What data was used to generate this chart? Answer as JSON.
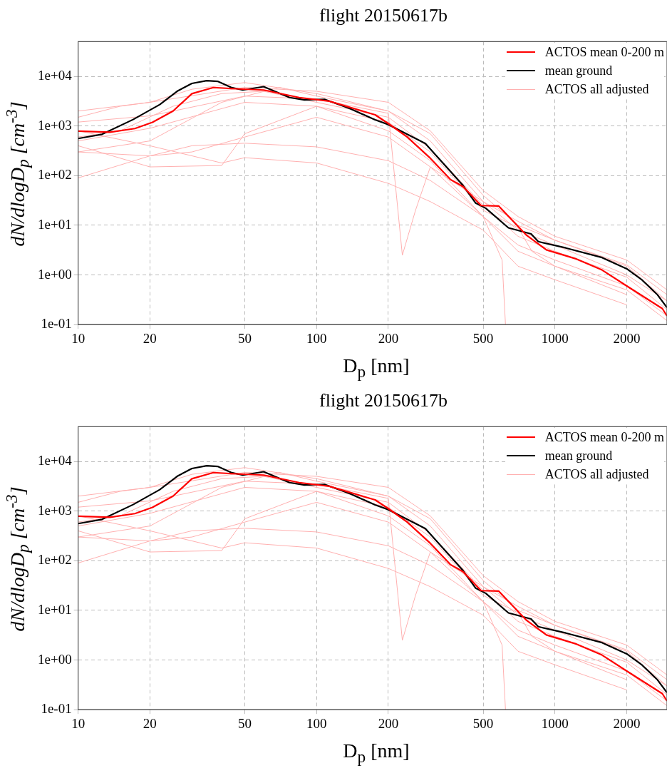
{
  "chart_data": [
    {
      "type": "line",
      "title": "flight 20150617b",
      "xlabel": "D$_{p}$ [nm]",
      "ylabel": "dN/dlogD$_{p}$ [cm$^{-3}$]",
      "log": "xy",
      "grid": true,
      "legend": "top right",
      "marker": "none",
      "line_style": "solid",
      "xlim": [
        10,
        2950
      ],
      "ylim": [
        0.1,
        50000
      ],
      "xticks": [
        10,
        20,
        50,
        100,
        200,
        500,
        1000,
        2000
      ],
      "yticks": [
        {
          "value": 0.1,
          "label": "1e-01"
        },
        {
          "value": 1,
          "label": "1e+00"
        },
        {
          "value": 10,
          "label": "1e+01"
        },
        {
          "value": 100,
          "label": "1e+02"
        },
        {
          "value": 1000,
          "label": "1e+03"
        },
        {
          "value": 10000,
          "label": "1e+04"
        }
      ],
      "series": [
        {
          "name": "ACTOS mean 0-200 m",
          "color": "#ff0000",
          "x": [
            10,
            13.6,
            17.3,
            20.5,
            25,
            30,
            36.9,
            45.9,
            60,
            84.5,
            113,
            176,
            200,
            240,
            300,
            364,
            412,
            490,
            580,
            760,
            920,
            1230,
            1575,
            2000,
            2820,
            2950
          ],
          "values": [
            790,
            750,
            890,
            1190,
            2000,
            4470,
            5950,
            5620,
            5300,
            3750,
            3160,
            1680,
            1120,
            600,
            224,
            84,
            60,
            25,
            24.5,
            6.3,
            3.2,
            2.1,
            1.26,
            0.6,
            0.21,
            0.15
          ]
        },
        {
          "name": "mean ground",
          "color": "#000000",
          "x": [
            10,
            12.6,
            17,
            22,
            26,
            30,
            34.6,
            38.6,
            43.8,
            49,
            60,
            77,
            89,
            108,
            138,
            176,
            200,
            236,
            286,
            347,
            412,
            465,
            513,
            638,
            794,
            851,
            1110,
            1575,
            2000,
            2320,
            2690,
            2950
          ],
          "values": [
            560,
            680,
            1350,
            2700,
            5000,
            7200,
            8200,
            7900,
            6000,
            5300,
            6200,
            3750,
            3350,
            3450,
            2250,
            1330,
            1070,
            710,
            445,
            158,
            63,
            28,
            22,
            8.9,
            6.7,
            4.7,
            3.5,
            2.24,
            1.33,
            0.79,
            0.4,
            0.22
          ]
        },
        {
          "name": "ACTOS all adjusted",
          "color": "#ffb0b0",
          "x": [
            10,
            15,
            20,
            30,
            50,
            100,
            200,
            300,
            500,
            700,
            1000,
            2000,
            2950
          ],
          "values": [
            1500,
            2500,
            3000,
            5500,
            7500,
            4500,
            2000,
            500,
            30,
            12,
            5,
            1.5,
            0.3
          ]
        },
        {
          "color": "#ffb0b0",
          "x": [
            10,
            20,
            30,
            50,
            100,
            200,
            300,
            500,
            700,
            1000,
            2000,
            2950
          ],
          "values": [
            300,
            250,
            300,
            600,
            1500,
            600,
            150,
            15,
            3,
            1.5,
            0.5,
            0.12
          ]
        },
        {
          "color": "#ffb0b0",
          "x": [
            10,
            20,
            40,
            50,
            100,
            200,
            300,
            500,
            700,
            1000,
            2000
          ],
          "values": [
            800,
            400,
            180,
            230,
            180,
            70,
            30,
            8,
            1.5,
            0.8,
            0.25
          ]
        },
        {
          "color": "#ffb0b0",
          "x": [
            10,
            20,
            30,
            50,
            100,
            200,
            300,
            500,
            700,
            1000,
            2000,
            2950
          ],
          "values": [
            90,
            250,
            400,
            450,
            380,
            200,
            80,
            15,
            4,
            2,
            0.6,
            0.15
          ]
        },
        {
          "color": "#ffb0b0",
          "x": [
            10,
            20,
            50,
            100,
            200,
            229,
            260,
            300,
            500,
            700,
            1000,
            2000,
            2950
          ],
          "values": [
            1200,
            1600,
            4000,
            3500,
            1800,
            2.5,
            20,
            150,
            30,
            8,
            4,
            1,
            0.3
          ]
        },
        {
          "color": "#ffb0b0",
          "x": [
            10,
            20,
            50,
            100,
            200,
            300,
            500,
            600,
            620
          ],
          "values": [
            500,
            900,
            3000,
            2500,
            800,
            200,
            15,
            2,
            0.1
          ]
        },
        {
          "color": "#ffb0b0",
          "x": [
            10,
            20,
            50,
            100,
            200,
            300,
            500,
            700,
            1000,
            2000,
            2950
          ],
          "values": [
            2000,
            3000,
            6000,
            5000,
            3000,
            800,
            50,
            15,
            6,
            2,
            0.5
          ]
        },
        {
          "color": "#ffb0b0",
          "x": [
            10,
            15,
            25,
            40,
            60,
            100,
            200,
            300,
            500,
            700,
            1000,
            2000,
            2950
          ],
          "values": [
            600,
            800,
            2500,
            4500,
            5000,
            3000,
            1500,
            350,
            25,
            6,
            3,
            0.9,
            0.2
          ]
        },
        {
          "color": "#ffb0b0",
          "x": [
            10,
            20,
            40,
            50,
            100,
            200,
            300,
            500,
            700,
            800,
            1000,
            2000
          ],
          "values": [
            400,
            150,
            160,
            700,
            2500,
            1200,
            300,
            20,
            9,
            3,
            1.5,
            0.4
          ]
        },
        {
          "color": "#ffb0b0",
          "x": [
            10,
            20,
            40,
            70,
            100,
            200,
            300,
            500,
            700,
            1000,
            2000,
            2950
          ],
          "values": [
            300,
            500,
            3000,
            6000,
            4000,
            2000,
            700,
            40,
            10,
            5,
            1.6,
            0.4
          ]
        }
      ]
    },
    {
      "type": "line",
      "title": "flight 20150617b",
      "xlabel": "D$_{p}$ [nm]",
      "ylabel": "dN/dlogD$_{p}$ [cm$^{-3}$]",
      "log": "xy",
      "grid": true,
      "legend": "top right",
      "marker": "none",
      "line_style": "solid",
      "xlim": [
        10,
        2950
      ],
      "ylim": [
        0.1,
        50000
      ],
      "xticks": [
        10,
        20,
        50,
        100,
        200,
        500,
        1000,
        2000
      ],
      "yticks": [
        {
          "value": 0.1,
          "label": "1e-01"
        },
        {
          "value": 1,
          "label": "1e+00"
        },
        {
          "value": 10,
          "label": "1e+01"
        },
        {
          "value": 100,
          "label": "1e+02"
        },
        {
          "value": 1000,
          "label": "1e+03"
        },
        {
          "value": 10000,
          "label": "1e+04"
        }
      ],
      "series": [
        {
          "name": "ACTOS mean 0-200 m",
          "color": "#ff0000",
          "x": [
            10,
            13.6,
            17.3,
            20.5,
            25,
            30,
            36.9,
            45.9,
            60,
            84.5,
            113,
            176,
            200,
            240,
            300,
            364,
            412,
            490,
            580,
            760,
            920,
            1230,
            1575,
            2000,
            2820,
            2950
          ],
          "values": [
            790,
            750,
            890,
            1190,
            2000,
            4470,
            5950,
            5620,
            5300,
            3750,
            3160,
            1680,
            1120,
            600,
            224,
            84,
            60,
            25,
            24.5,
            6.3,
            3.2,
            2.1,
            1.26,
            0.6,
            0.21,
            0.15
          ]
        },
        {
          "name": "mean ground",
          "color": "#000000",
          "x": [
            10,
            12.6,
            17,
            22,
            26,
            30,
            34.6,
            38.6,
            43.8,
            49,
            60,
            77,
            89,
            108,
            138,
            176,
            200,
            236,
            286,
            347,
            412,
            465,
            513,
            638,
            794,
            851,
            1110,
            1575,
            2000,
            2320,
            2690,
            2950
          ],
          "values": [
            560,
            680,
            1350,
            2700,
            5000,
            7200,
            8200,
            7900,
            6000,
            5300,
            6200,
            3750,
            3350,
            3450,
            2250,
            1330,
            1070,
            710,
            445,
            158,
            63,
            28,
            22,
            8.9,
            6.7,
            4.7,
            3.5,
            2.24,
            1.33,
            0.79,
            0.4,
            0.22
          ]
        },
        {
          "name": "ACTOS all adjusted",
          "color": "#ffb0b0",
          "x": [
            10,
            15,
            20,
            30,
            50,
            100,
            200,
            300,
            500,
            700,
            1000,
            2000,
            2950
          ],
          "values": [
            1500,
            2500,
            3000,
            5500,
            7500,
            4500,
            2000,
            500,
            30,
            12,
            5,
            1.5,
            0.3
          ]
        },
        {
          "color": "#ffb0b0",
          "x": [
            10,
            20,
            30,
            50,
            100,
            200,
            300,
            500,
            700,
            1000,
            2000,
            2950
          ],
          "values": [
            300,
            250,
            300,
            600,
            1500,
            600,
            150,
            15,
            3,
            1.5,
            0.5,
            0.12
          ]
        },
        {
          "color": "#ffb0b0",
          "x": [
            10,
            20,
            40,
            50,
            100,
            200,
            300,
            500,
            700,
            1000,
            2000
          ],
          "values": [
            800,
            400,
            180,
            230,
            180,
            70,
            30,
            8,
            1.5,
            0.8,
            0.25
          ]
        },
        {
          "color": "#ffb0b0",
          "x": [
            10,
            20,
            30,
            50,
            100,
            200,
            300,
            500,
            700,
            1000,
            2000,
            2950
          ],
          "values": [
            90,
            250,
            400,
            450,
            380,
            200,
            80,
            15,
            4,
            2,
            0.6,
            0.15
          ]
        },
        {
          "color": "#ffb0b0",
          "x": [
            10,
            20,
            50,
            100,
            200,
            229,
            260,
            300,
            500,
            700,
            1000,
            2000,
            2950
          ],
          "values": [
            1200,
            1600,
            4000,
            3500,
            1800,
            2.5,
            20,
            150,
            30,
            8,
            4,
            1,
            0.3
          ]
        },
        {
          "color": "#ffb0b0",
          "x": [
            10,
            20,
            50,
            100,
            200,
            300,
            500,
            600,
            620
          ],
          "values": [
            500,
            900,
            3000,
            2500,
            800,
            200,
            15,
            2,
            0.1
          ]
        },
        {
          "color": "#ffb0b0",
          "x": [
            10,
            20,
            50,
            100,
            200,
            300,
            500,
            700,
            1000,
            2000,
            2950
          ],
          "values": [
            2000,
            3000,
            6000,
            5000,
            3000,
            800,
            50,
            15,
            6,
            2,
            0.5
          ]
        },
        {
          "color": "#ffb0b0",
          "x": [
            10,
            15,
            25,
            40,
            60,
            100,
            200,
            300,
            500,
            700,
            1000,
            2000,
            2950
          ],
          "values": [
            600,
            800,
            2500,
            4500,
            5000,
            3000,
            1500,
            350,
            25,
            6,
            3,
            0.9,
            0.2
          ]
        },
        {
          "color": "#ffb0b0",
          "x": [
            10,
            20,
            40,
            50,
            100,
            200,
            300,
            500,
            700,
            800,
            1000,
            2000
          ],
          "values": [
            400,
            150,
            160,
            700,
            2500,
            1200,
            300,
            20,
            9,
            3,
            1.5,
            0.4
          ]
        },
        {
          "color": "#ffb0b0",
          "x": [
            10,
            20,
            40,
            70,
            100,
            200,
            300,
            500,
            700,
            1000,
            2000,
            2950
          ],
          "values": [
            300,
            500,
            3000,
            6000,
            4000,
            2000,
            700,
            40,
            10,
            5,
            1.6,
            0.4
          ]
        }
      ]
    }
  ]
}
